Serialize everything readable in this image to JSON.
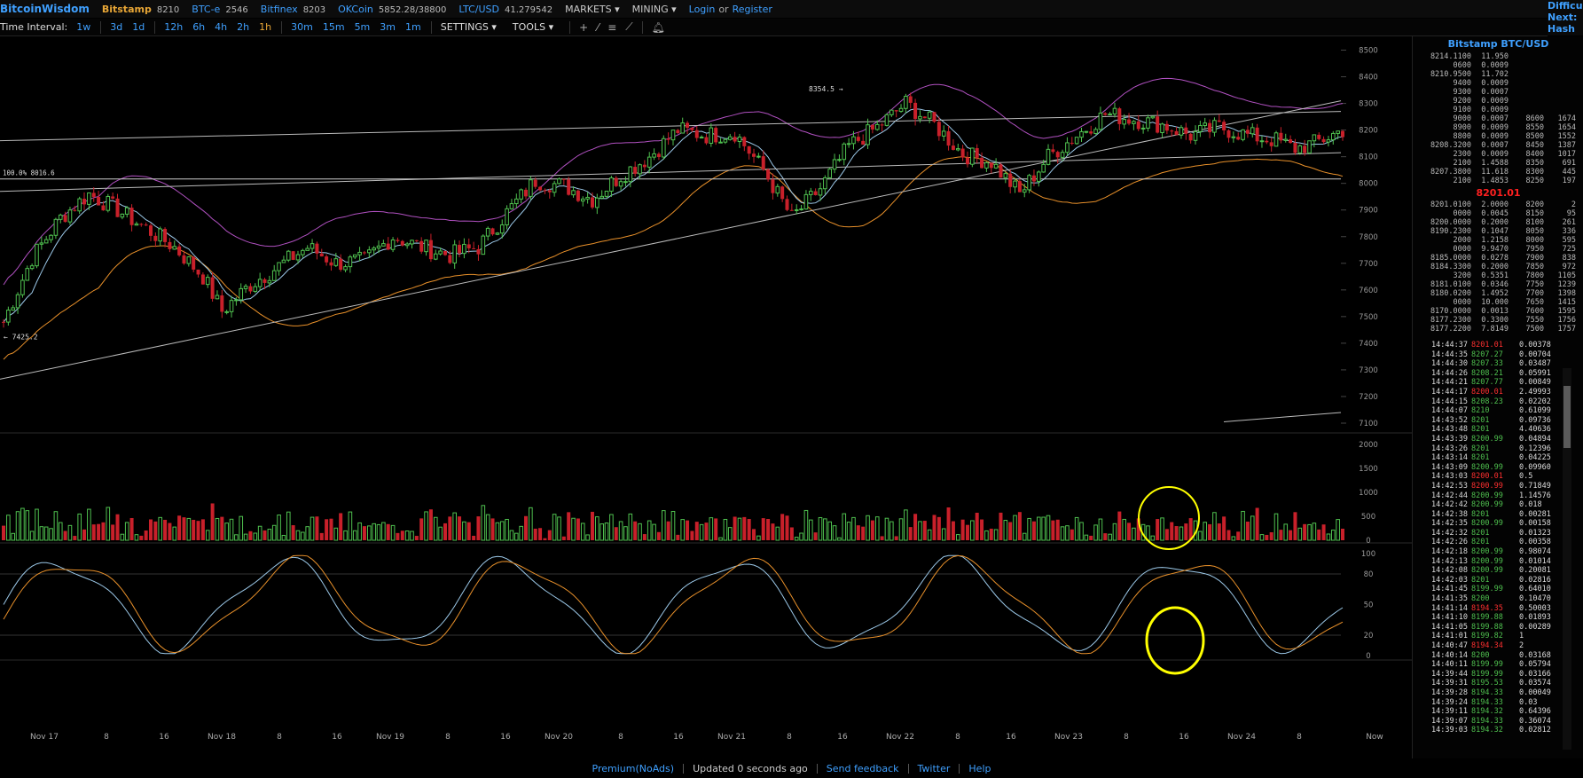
{
  "topbar": {
    "brand": "BitcoinWisdom",
    "markets": [
      {
        "name": "Bitstamp",
        "price": "8210",
        "style": "orange"
      },
      {
        "name": "BTC-e",
        "price": "2546",
        "style": "blue"
      },
      {
        "name": "Bitfinex",
        "price": "8203",
        "style": "blue"
      },
      {
        "name": "OKCoin",
        "price": "5852.28/38800",
        "style": "blue"
      },
      {
        "name": "LTC/USD",
        "price": "41.279542",
        "style": "blue"
      }
    ],
    "markets_menu": "MARKETS",
    "mining_menu": "MINING",
    "login": "Login",
    "or": "or",
    "register": "Register"
  },
  "difficulty": {
    "line1": "Difficu",
    "line2": "Next:",
    "line3": "Hash R"
  },
  "toolbar": {
    "label": "Time Interval:",
    "intervals": [
      "1w",
      "3d",
      "1d",
      "12h",
      "6h",
      "4h",
      "2h",
      "1h",
      "30m",
      "15m",
      "5m",
      "3m",
      "1m"
    ],
    "active": "1h",
    "settings": "SETTINGS",
    "tools": "TOOLS"
  },
  "chart_data": {
    "type": "candlestick",
    "x_labels": [
      "Nov 17",
      "8",
      "16",
      "Nov 18",
      "8",
      "16",
      "Nov 19",
      "8",
      "16",
      "Nov 20",
      "8",
      "16",
      "Nov 21",
      "8",
      "16",
      "Nov 22",
      "8",
      "16",
      "Nov 23",
      "8",
      "16",
      "Nov 24",
      "8",
      "Now"
    ],
    "price_axis": [
      8500,
      8400,
      8300,
      8200,
      8100,
      8000,
      7900,
      7800,
      7700,
      7600,
      7500,
      7400,
      7300,
      7200,
      7100
    ],
    "ylim": [
      7070,
      8535
    ],
    "annotations": {
      "high": "8354.5",
      "low": "7425.2",
      "level": "100.0% 8016.6"
    },
    "volume_axis": [
      2000,
      1500,
      1000,
      500,
      0
    ],
    "osc_axis": [
      100,
      80,
      50,
      20,
      0
    ],
    "close_points": [
      [
        0,
        7480
      ],
      [
        6,
        7720
      ],
      [
        12,
        7870
      ],
      [
        18,
        7960
      ],
      [
        24,
        7900
      ],
      [
        30,
        7830
      ],
      [
        36,
        7760
      ],
      [
        42,
        7650
      ],
      [
        46,
        7520
      ],
      [
        52,
        7620
      ],
      [
        58,
        7690
      ],
      [
        64,
        7760
      ],
      [
        70,
        7700
      ],
      [
        76,
        7710
      ],
      [
        82,
        7800
      ],
      [
        88,
        7760
      ],
      [
        94,
        7730
      ],
      [
        100,
        7760
      ],
      [
        106,
        7890
      ],
      [
        112,
        8010
      ],
      [
        118,
        7990
      ],
      [
        124,
        7940
      ],
      [
        130,
        8030
      ],
      [
        136,
        8100
      ],
      [
        142,
        8200
      ],
      [
        148,
        8180
      ],
      [
        154,
        8190
      ],
      [
        160,
        8050
      ],
      [
        166,
        7870
      ],
      [
        172,
        7980
      ],
      [
        178,
        8140
      ],
      [
        184,
        8210
      ],
      [
        190,
        8300
      ],
      [
        196,
        8220
      ],
      [
        202,
        8110
      ],
      [
        208,
        8080
      ],
      [
        214,
        7960
      ],
      [
        220,
        8100
      ],
      [
        226,
        8180
      ],
      [
        232,
        8260
      ],
      [
        238,
        8240
      ],
      [
        244,
        8220
      ],
      [
        250,
        8180
      ],
      [
        256,
        8210
      ],
      [
        262,
        8180
      ],
      [
        268,
        8160
      ],
      [
        272,
        8130
      ],
      [
        276,
        8150
      ],
      [
        282,
        8200
      ]
    ]
  },
  "sidebar": {
    "symbol": "Bitstamp BTC/USD",
    "asks": [
      [
        "8214.1100",
        "11.950",
        "",
        ""
      ],
      [
        "0600",
        "0.0009",
        "",
        ""
      ],
      [
        "8210.9500",
        "11.702",
        "",
        ""
      ],
      [
        "9400",
        "0.0009",
        "",
        ""
      ],
      [
        "9300",
        "0.0007",
        "",
        ""
      ],
      [
        "9200",
        "0.0009",
        "",
        ""
      ],
      [
        "9100",
        "0.0009",
        "",
        ""
      ],
      [
        "9000",
        "0.0007",
        "8600",
        "1674"
      ],
      [
        "8900",
        "0.0009",
        "8550",
        "1654"
      ],
      [
        "8800",
        "0.0009",
        "8500",
        "1552"
      ],
      [
        "8208.3200",
        "0.0007",
        "8450",
        "1387"
      ],
      [
        "2300",
        "0.0009",
        "8400",
        "1017"
      ],
      [
        "2100",
        "1.4588",
        "8350",
        "691"
      ],
      [
        "8207.3800",
        "11.618",
        "8300",
        "445"
      ],
      [
        "2100",
        "1.4853",
        "8250",
        "197"
      ]
    ],
    "last_price": "8201.01",
    "bids": [
      [
        "8201.0100",
        "2.0000",
        "8200",
        "2"
      ],
      [
        "0000",
        "0.0045",
        "8150",
        "95"
      ],
      [
        "8200.0000",
        "0.2000",
        "8100",
        "261"
      ],
      [
        "8190.2300",
        "0.1047",
        "8050",
        "336"
      ],
      [
        "2000",
        "1.2158",
        "8000",
        "595"
      ],
      [
        "0000",
        "9.9470",
        "7950",
        "725"
      ],
      [
        "8185.0000",
        "0.0278",
        "7900",
        "838"
      ],
      [
        "8184.3300",
        "0.2000",
        "7850",
        "972"
      ],
      [
        "3200",
        "0.5351",
        "7800",
        "1105"
      ],
      [
        "8181.0100",
        "0.0346",
        "7750",
        "1239"
      ],
      [
        "8180.0200",
        "1.4952",
        "7700",
        "1398"
      ],
      [
        "0000",
        "10.000",
        "7650",
        "1415"
      ],
      [
        "8170.0000",
        "0.0013",
        "7600",
        "1595"
      ],
      [
        "8177.2300",
        "0.3300",
        "7550",
        "1756"
      ],
      [
        "8177.2200",
        "7.8149",
        "7500",
        "1757"
      ]
    ],
    "trades": [
      [
        "14:44:37",
        "8201.01",
        "dn",
        "0.00378"
      ],
      [
        "14:44:35",
        "8207.27",
        "up",
        "0.00704"
      ],
      [
        "14:44:30",
        "8207.33",
        "up",
        "0.03487"
      ],
      [
        "14:44:26",
        "8208.21",
        "up",
        "0.05991"
      ],
      [
        "14:44:21",
        "8207.77",
        "up",
        "0.00849"
      ],
      [
        "14:44:17",
        "8200.01",
        "dn",
        "2.49993"
      ],
      [
        "14:44:15",
        "8208.23",
        "up",
        "0.02202"
      ],
      [
        "14:44:07",
        "8210",
        "up",
        "0.61099"
      ],
      [
        "14:43:52",
        "8201",
        "up",
        "0.09736"
      ],
      [
        "14:43:48",
        "8201",
        "up",
        "4.40636"
      ],
      [
        "14:43:39",
        "8200.99",
        "up",
        "0.04894"
      ],
      [
        "14:43:26",
        "8201",
        "up",
        "0.12396"
      ],
      [
        "14:43:14",
        "8201",
        "up",
        "0.04225"
      ],
      [
        "14:43:09",
        "8200.99",
        "up",
        "0.09960"
      ],
      [
        "14:43:03",
        "8200.01",
        "dn",
        "0.5"
      ],
      [
        "14:42:53",
        "8200.99",
        "dn",
        "0.71849"
      ],
      [
        "14:42:44",
        "8200.99",
        "up",
        "1.14576"
      ],
      [
        "14:42:42",
        "8200.99",
        "up",
        "0.018"
      ],
      [
        "14:42:38",
        "8201",
        "up",
        "0.00281"
      ],
      [
        "14:42:35",
        "8200.99",
        "up",
        "0.00158"
      ],
      [
        "14:42:32",
        "8201",
        "up",
        "0.01323"
      ],
      [
        "14:42:26",
        "8201",
        "up",
        "0.00358"
      ],
      [
        "14:42:18",
        "8200.99",
        "up",
        "0.98074"
      ],
      [
        "14:42:13",
        "8200.99",
        "up",
        "0.01014"
      ],
      [
        "14:42:08",
        "8200.99",
        "up",
        "0.20081"
      ],
      [
        "14:42:03",
        "8201",
        "up",
        "0.02816"
      ],
      [
        "14:41:45",
        "8199.99",
        "up",
        "0.64010"
      ],
      [
        "14:41:35",
        "8200",
        "up",
        "0.10470"
      ],
      [
        "14:41:14",
        "8194.35",
        "dn",
        "0.50003"
      ],
      [
        "14:41:10",
        "8199.88",
        "up",
        "0.01893"
      ],
      [
        "14:41:05",
        "8199.88",
        "up",
        "0.00289"
      ],
      [
        "14:41:01",
        "8199.82",
        "up",
        "1"
      ],
      [
        "14:40:47",
        "8194.34",
        "dn",
        "2"
      ],
      [
        "14:40:14",
        "8200",
        "up",
        "0.03168"
      ],
      [
        "14:40:11",
        "8199.99",
        "up",
        "0.05794"
      ],
      [
        "14:39:44",
        "8199.99",
        "up",
        "0.03166"
      ],
      [
        "14:39:31",
        "8195.53",
        "up",
        "0.03574"
      ],
      [
        "14:39:28",
        "8194.33",
        "up",
        "0.00049"
      ],
      [
        "14:39:24",
        "8194.33",
        "up",
        "0.03"
      ],
      [
        "14:39:11",
        "8194.32",
        "up",
        "0.64396"
      ],
      [
        "14:39:07",
        "8194.33",
        "up",
        "0.36074"
      ],
      [
        "14:39:03",
        "8194.32",
        "up",
        "0.02812"
      ]
    ]
  },
  "footer": {
    "premium": "Premium(NoAds)",
    "updated": "Updated 0 seconds ago",
    "feedback": "Send feedback",
    "twitter": "Twitter",
    "help": "Help"
  },
  "colors": {
    "up": "#4fc04f",
    "down": "#c8202a",
    "bb": "#b050c0",
    "ma_slow": "#e8902a",
    "ma_fast": "#9bc8e8",
    "accent": "#3fa0ff",
    "highlight": "#ffff00"
  }
}
